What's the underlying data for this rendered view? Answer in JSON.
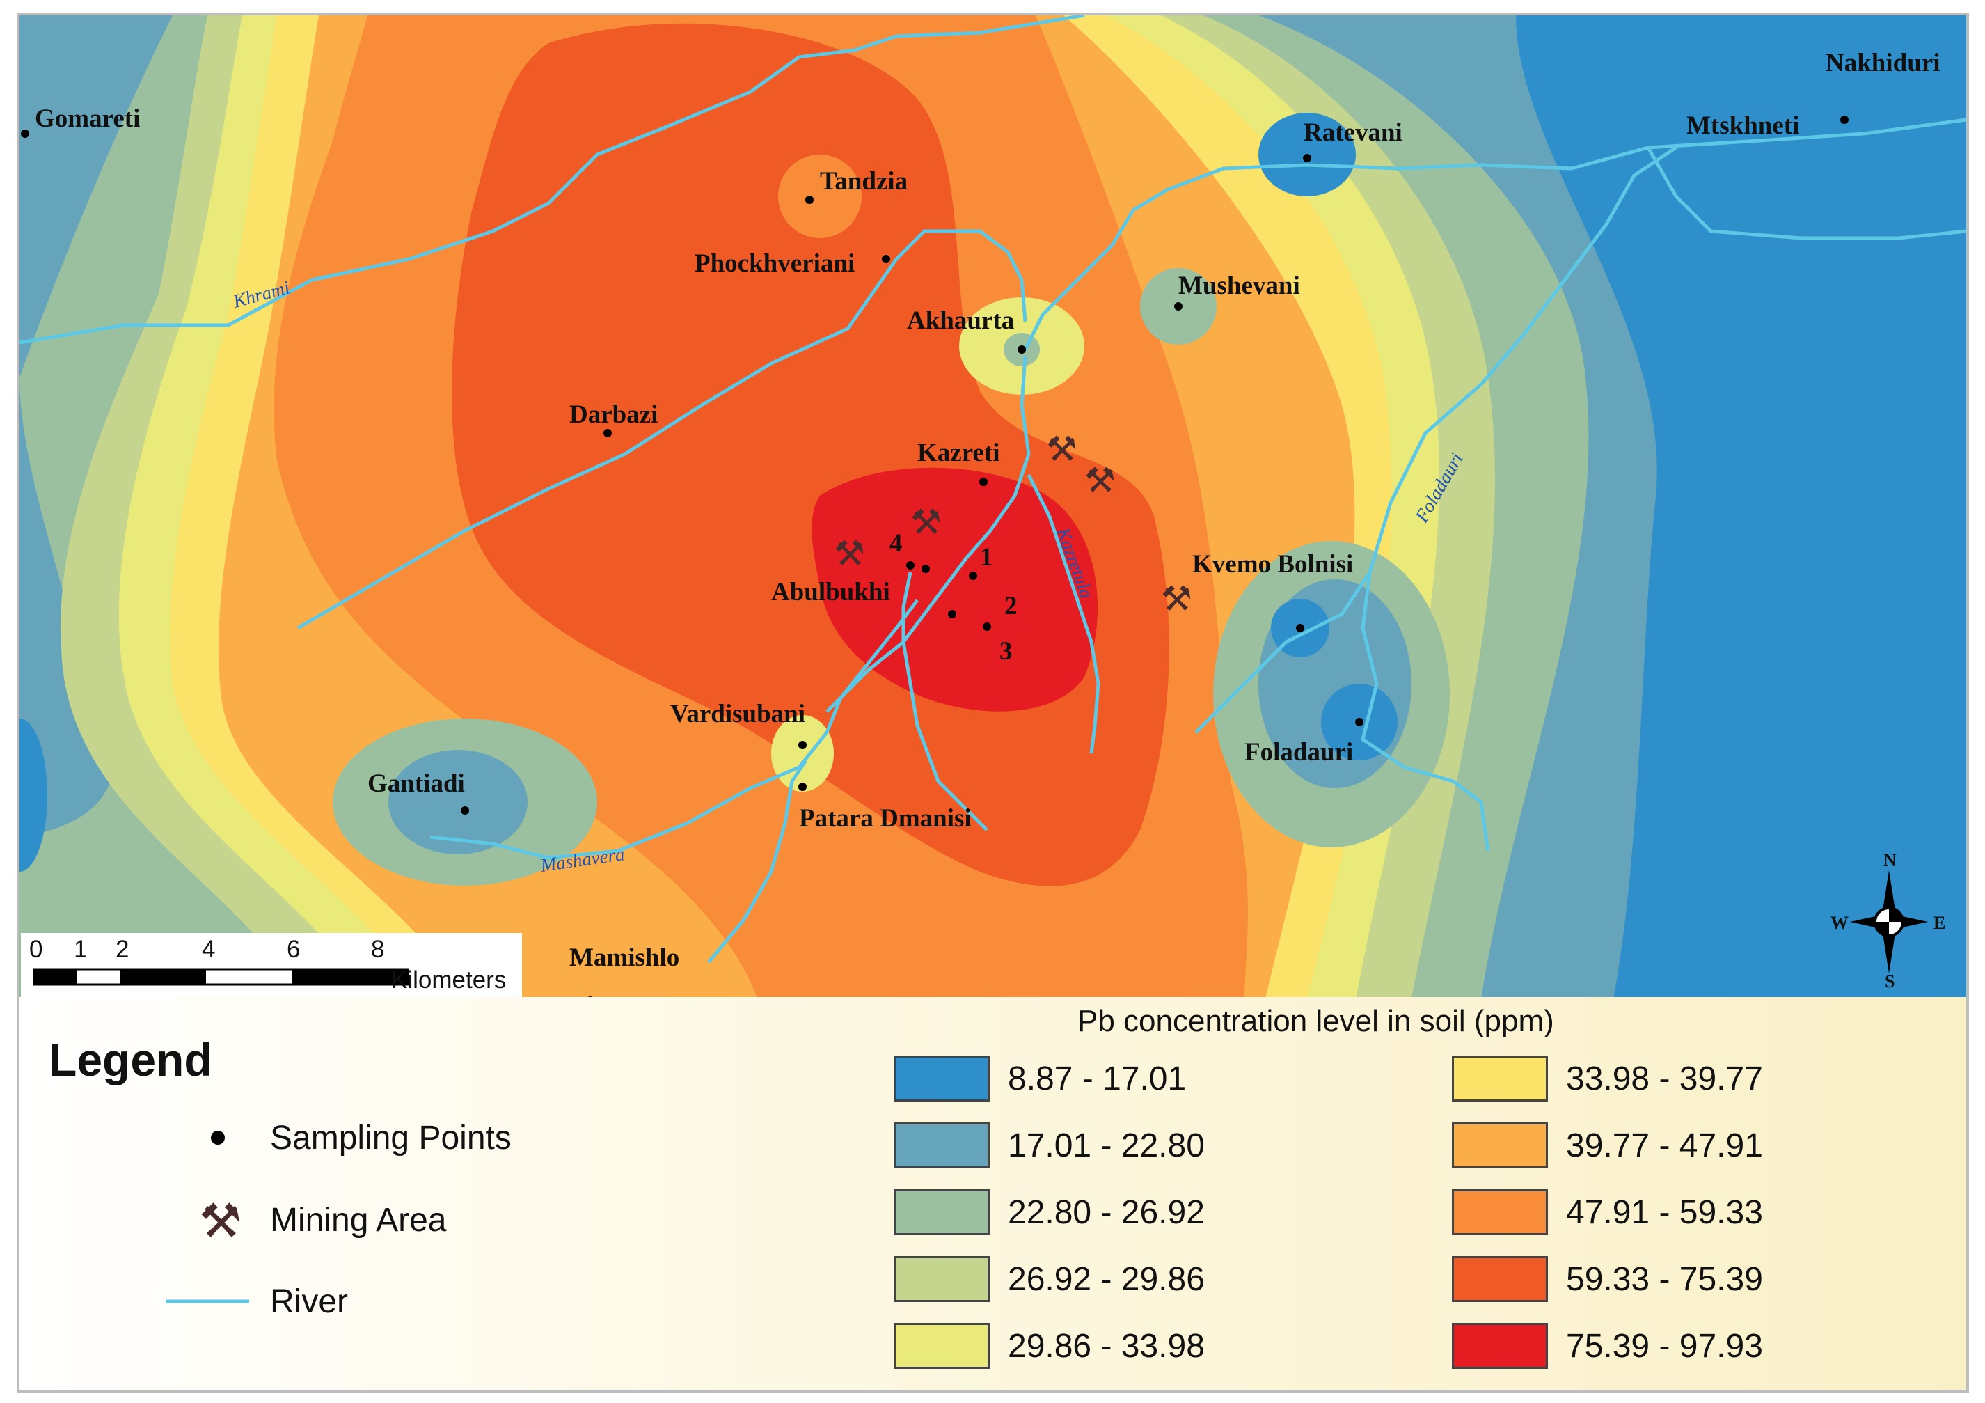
{
  "map": {
    "places": [
      {
        "name": "Gomareti"
      },
      {
        "name": "Tandzia"
      },
      {
        "name": "Phockhveriani"
      },
      {
        "name": "Akhaurta"
      },
      {
        "name": "Darbazi"
      },
      {
        "name": "Kazreti"
      },
      {
        "name": "Abulbukhi"
      },
      {
        "name": "Vardisubani"
      },
      {
        "name": "Gantiadi"
      },
      {
        "name": "Patara Dmanisi"
      },
      {
        "name": "Mamishlo"
      },
      {
        "name": "Ratevani"
      },
      {
        "name": "Mtskhneti"
      },
      {
        "name": "Nakhiduri"
      },
      {
        "name": "Mushevani"
      },
      {
        "name": "Kvemo Bolnisi"
      },
      {
        "name": "Foladauri"
      }
    ],
    "rivers": [
      {
        "name": "Khrami"
      },
      {
        "name": "Mashavera"
      },
      {
        "name": "Kazretula"
      },
      {
        "name": "Foladauri"
      }
    ],
    "sample_numbers": [
      "1",
      "2",
      "3",
      "4"
    ],
    "compass": {
      "n": "N",
      "s": "S",
      "e": "E",
      "w": "W"
    },
    "scale": {
      "ticks": [
        "0",
        "1",
        "2",
        "4",
        "6",
        "8"
      ],
      "unit": "Kilometers"
    }
  },
  "legend": {
    "title": "Legend",
    "items": [
      {
        "label": "Sampling Points",
        "icon": "dot-icon"
      },
      {
        "label": "Mining Area",
        "icon": "pick-shovel-icon"
      },
      {
        "label": "River",
        "icon": "river-line-icon"
      }
    ],
    "concentration_title": "Pb concentration level in soil (ppm)",
    "classes": [
      {
        "label": "8.87 - 17.01",
        "color": "#2e8fcb"
      },
      {
        "label": "17.01 - 22.80",
        "color": "#65a4bb"
      },
      {
        "label": "22.80 - 26.92",
        "color": "#9ac0a0"
      },
      {
        "label": "26.92 - 29.86",
        "color": "#c5d58e"
      },
      {
        "label": "29.86 - 33.98",
        "color": "#e9ea7a"
      },
      {
        "label": "33.98 - 39.77",
        "color": "#fbe268"
      },
      {
        "label": "39.77 - 47.91",
        "color": "#fbae48"
      },
      {
        "label": "47.91 - 59.33",
        "color": "#f98c38"
      },
      {
        "label": "59.33 - 75.39",
        "color": "#ef5a25"
      },
      {
        "label": "75.39 - 97.93",
        "color": "#e51d23"
      }
    ],
    "river_color": "#5cc8e6",
    "mining_color": "#4a2b2b"
  }
}
